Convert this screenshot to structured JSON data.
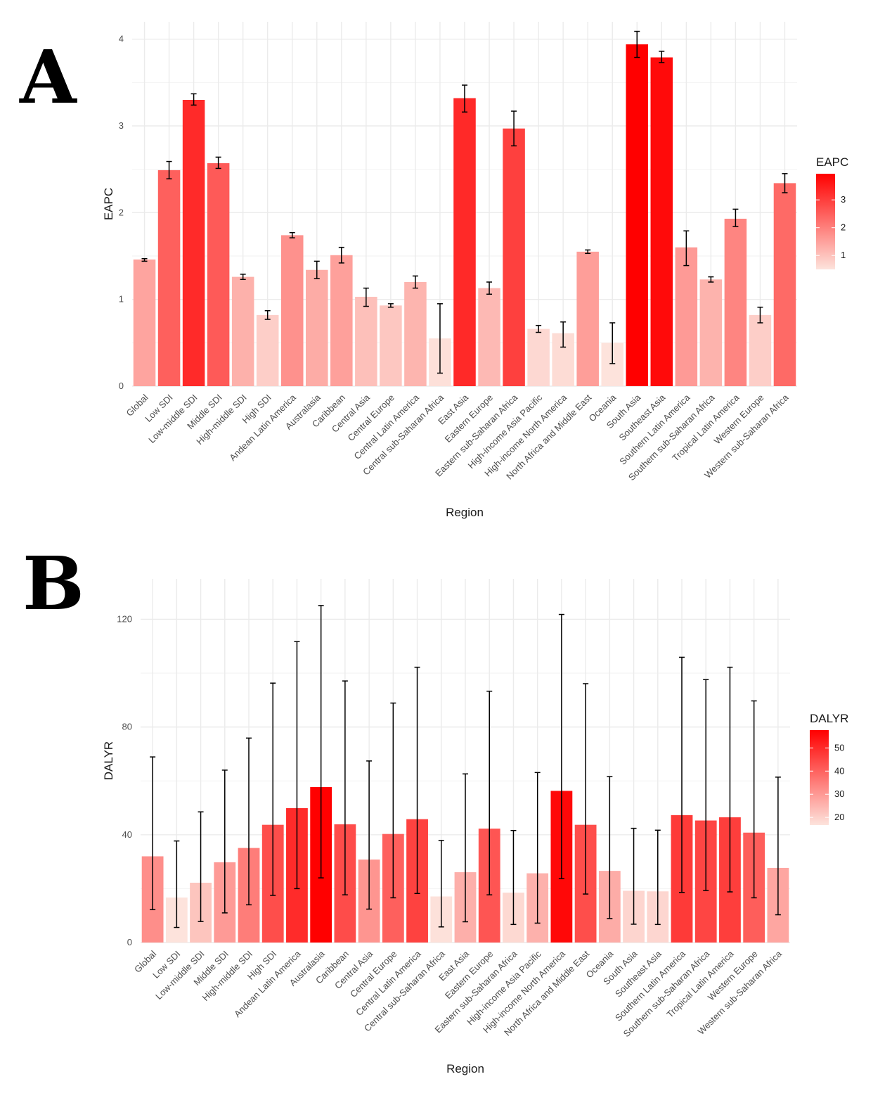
{
  "panels": {
    "a_label": "A",
    "b_label": "B"
  },
  "colors": {
    "low": "#fde3dc",
    "high": "#ff0000",
    "grid": "#ebebeb",
    "error_bar": "#000000"
  },
  "chart_data": [
    {
      "type": "bar",
      "title": "",
      "xlabel": "Region",
      "ylabel": "EAPC",
      "ylim": [
        0,
        4.2
      ],
      "yticks": [
        0,
        1,
        2,
        3,
        4
      ],
      "grid": true,
      "legend": {
        "title": "EAPC",
        "position": "right",
        "ticks": [
          1,
          2,
          3
        ],
        "range": [
          0.5,
          3.94
        ]
      },
      "categories": [
        "Global",
        "Low SDI",
        "Low-middle SDI",
        "Middle SDI",
        "High-middle SDI",
        "High SDI",
        "Andean Latin America",
        "Australasia",
        "Caribbean",
        "Central Asia",
        "Central Europe",
        "Central Latin America",
        "Central sub-Saharan Africa",
        "East Asia",
        "Eastern Europe",
        "Eastern sub-Saharan Africa",
        "High-income Asia Pacific",
        "High-income North America",
        "North Africa and Middle East",
        "Oceania",
        "South Asia",
        "Southeast Asia",
        "Southern Latin America",
        "Southern sub-Saharan Africa",
        "Tropical Latin America",
        "Western Europe",
        "Western sub-Saharan Africa"
      ],
      "values": [
        1.46,
        2.49,
        3.3,
        2.57,
        1.26,
        0.82,
        1.74,
        1.34,
        1.51,
        1.03,
        0.93,
        1.2,
        0.55,
        3.32,
        1.13,
        2.97,
        0.66,
        0.61,
        1.55,
        0.5,
        3.94,
        3.79,
        1.6,
        1.23,
        1.93,
        0.82,
        2.34
      ],
      "lower": [
        1.44,
        2.39,
        3.24,
        2.51,
        1.23,
        0.77,
        1.71,
        1.24,
        1.42,
        0.92,
        0.91,
        1.13,
        0.15,
        3.16,
        1.06,
        2.77,
        0.62,
        0.45,
        1.53,
        0.26,
        3.79,
        3.73,
        1.39,
        1.2,
        1.84,
        0.73,
        2.23
      ],
      "upper": [
        1.47,
        2.59,
        3.37,
        2.64,
        1.29,
        0.87,
        1.77,
        1.44,
        1.6,
        1.13,
        0.95,
        1.27,
        0.95,
        3.47,
        1.2,
        3.17,
        0.7,
        0.74,
        1.57,
        0.73,
        4.09,
        3.86,
        1.79,
        1.26,
        2.04,
        0.91,
        2.45
      ]
    },
    {
      "type": "bar",
      "title": "",
      "xlabel": "Region",
      "ylabel": "DALYR",
      "ylim": [
        0,
        135
      ],
      "yticks": [
        0,
        40,
        80,
        120
      ],
      "grid": true,
      "legend": {
        "title": "DALYR",
        "position": "right",
        "ticks": [
          20,
          30,
          40,
          50
        ],
        "range": [
          16.7,
          57.7
        ]
      },
      "categories": [
        "Global",
        "Low SDI",
        "Low-middle SDI",
        "Middle SDI",
        "High-middle SDI",
        "High SDI",
        "Andean Latin America",
        "Australasia",
        "Caribbean",
        "Central Asia",
        "Central Europe",
        "Central Latin America",
        "Central sub-Saharan Africa",
        "East Asia",
        "Eastern Europe",
        "Eastern sub-Saharan Africa",
        "High-income Asia Pacific",
        "High-income North America",
        "North Africa and Middle East",
        "Oceania",
        "South Asia",
        "Southeast Asia",
        "Southern Latin America",
        "Southern sub-Saharan Africa",
        "Tropical Latin America",
        "Western Europe",
        "Western sub-Saharan Africa"
      ],
      "values": [
        32.0,
        16.7,
        22.2,
        29.8,
        35.1,
        43.7,
        49.9,
        57.7,
        43.9,
        30.8,
        40.3,
        45.8,
        17.1,
        26.1,
        42.3,
        18.5,
        25.7,
        56.3,
        43.7,
        26.6,
        19.2,
        19.0,
        47.3,
        45.3,
        46.5,
        40.8,
        27.7
      ],
      "lower": [
        12.2,
        5.6,
        7.8,
        11.0,
        14.0,
        17.5,
        20.0,
        24.0,
        17.7,
        12.4,
        16.6,
        18.2,
        5.8,
        7.7,
        17.7,
        6.7,
        7.2,
        23.7,
        18.0,
        8.9,
        6.8,
        6.7,
        18.6,
        19.3,
        18.8,
        16.6,
        10.3
      ],
      "upper": [
        68.9,
        37.7,
        48.5,
        64.0,
        75.9,
        96.3,
        111.7,
        125.1,
        97.1,
        67.4,
        88.9,
        102.2,
        37.9,
        62.6,
        93.3,
        41.6,
        63.1,
        121.8,
        96.1,
        61.6,
        42.4,
        41.7,
        105.9,
        97.6,
        102.2,
        89.7,
        61.4
      ]
    }
  ]
}
